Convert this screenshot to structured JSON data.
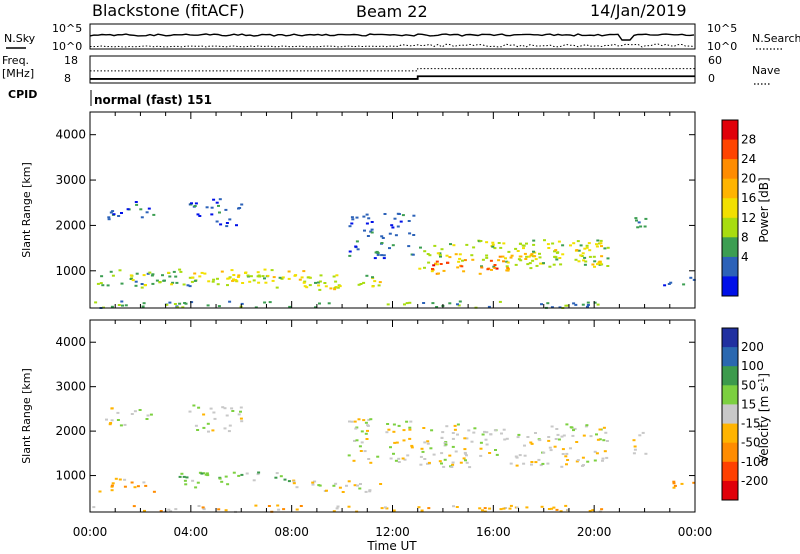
{
  "header": {
    "radar": "Blackstone (fitACF)",
    "beam": "Beam 22",
    "date": "14/Jan/2019"
  },
  "status_panels": {
    "nsky_label": "N.Sky",
    "nsearch_label": "N.Search",
    "freq_label": "Freq.",
    "freq_unit": "[MHz]",
    "nave_label": "Nave",
    "cpid_label": "CPID",
    "cpid_text": "normal (fast) 151",
    "noise_ticks": [
      "10^5",
      "10^0"
    ],
    "freq_ticks": [
      "18",
      "8"
    ],
    "nave_ticks": [
      "60",
      "0"
    ],
    "freq_series": {
      "before": 9.5,
      "after": 10.5,
      "change_hour": 13.0
    },
    "nave_series": {
      "before": 27,
      "after": 32,
      "change_hour": 13.0
    }
  },
  "x_axis": {
    "title": "Time UT",
    "ticks": [
      "00:00",
      "04:00",
      "08:00",
      "12:00",
      "16:00",
      "20:00",
      "00:00"
    ],
    "range_hours": [
      0,
      24
    ]
  },
  "chart_data": [
    {
      "type": "heatmap",
      "name": "power",
      "ylabel": "Slant Range [km]",
      "yticks": [
        1000,
        2000,
        3000,
        4000
      ],
      "ylim": [
        180,
        4500
      ],
      "colorbar": {
        "label": "Power [dB]",
        "ticks": [
          "28",
          "24",
          "20",
          "16",
          "12",
          "8",
          "4"
        ],
        "colors": [
          "#e0000a",
          "#ff4400",
          "#ff8c00",
          "#ffb400",
          "#f2e000",
          "#a8dc10",
          "#3c9e52",
          "#2c62b8",
          "#0010e8"
        ]
      },
      "regions": [
        {
          "t0": 0.5,
          "t1": 2.5,
          "r0": 2150,
          "r1": 2550,
          "level": 1
        },
        {
          "t0": 3.9,
          "t1": 6.0,
          "r0": 2000,
          "r1": 2600,
          "level": 1
        },
        {
          "t0": 0.0,
          "t1": 4.0,
          "r0": 650,
          "r1": 1000,
          "level": 2
        },
        {
          "t0": 1.0,
          "t1": 7.0,
          "r0": 700,
          "r1": 1050,
          "level": 3
        },
        {
          "t0": 3.5,
          "t1": 8.5,
          "r0": 750,
          "r1": 1050,
          "level": 4
        },
        {
          "t0": 7.0,
          "t1": 11.5,
          "r0": 650,
          "r1": 950,
          "level": 3
        },
        {
          "t0": 9.0,
          "t1": 11.5,
          "r0": 550,
          "r1": 800,
          "level": 4
        },
        {
          "t0": 0.0,
          "t1": 20.5,
          "r0": 200,
          "r1": 350,
          "level": 2
        },
        {
          "t0": 10.2,
          "t1": 12.8,
          "r0": 1300,
          "r1": 2300,
          "level": 1
        },
        {
          "t0": 13.0,
          "t1": 20.5,
          "r0": 1050,
          "r1": 1700,
          "level": 3
        },
        {
          "t0": 13.5,
          "t1": 17.5,
          "r0": 950,
          "r1": 1400,
          "level": 5
        },
        {
          "t0": 13.5,
          "t1": 16.5,
          "r0": 1050,
          "r1": 1250,
          "level": 7
        },
        {
          "t0": 17.0,
          "t1": 20.5,
          "r0": 1150,
          "r1": 1650,
          "level": 4
        },
        {
          "t0": 21.5,
          "t1": 22.0,
          "r0": 1500,
          "r1": 2200,
          "level": 2
        },
        {
          "t0": 22.5,
          "t1": 24.0,
          "r0": 700,
          "r1": 900,
          "level": 1
        }
      ]
    },
    {
      "type": "heatmap",
      "name": "velocity",
      "ylabel": "Slant Range [km]",
      "yticks": [
        1000,
        2000,
        3000,
        4000
      ],
      "ylim": [
        180,
        4500
      ],
      "colorbar": {
        "label": "Velocity [m s",
        "label_exp": "-1",
        "label_end": "]",
        "ticks": [
          "200",
          "100",
          "50",
          "15",
          "-15",
          "-50",
          "-100",
          "-200"
        ],
        "colors": [
          "#2030a0",
          "#2a68b0",
          "#3c9a4c",
          "#7cd040",
          "#c8c8c8",
          "#ffb400",
          "#ff8c00",
          "#ff4000",
          "#e0000a"
        ]
      },
      "regions": [
        {
          "t0": 0.5,
          "t1": 2.5,
          "r0": 2150,
          "r1": 2550,
          "level": 4
        },
        {
          "t0": 3.9,
          "t1": 6.0,
          "r0": 2000,
          "r1": 2600,
          "level": 4
        },
        {
          "t0": 0.0,
          "t1": 2.5,
          "r0": 650,
          "r1": 950,
          "level": 3
        },
        {
          "t0": 3.5,
          "t1": 8.0,
          "r0": 750,
          "r1": 1100,
          "level": 5
        },
        {
          "t0": 8.0,
          "t1": 11.5,
          "r0": 650,
          "r1": 1000,
          "level": 4
        },
        {
          "t0": 0.0,
          "t1": 20.5,
          "r0": 200,
          "r1": 350,
          "level": 3
        },
        {
          "t0": 10.2,
          "t1": 12.8,
          "r0": 1300,
          "r1": 2300,
          "level": 4
        },
        {
          "t0": 13.0,
          "t1": 20.5,
          "r0": 1200,
          "r1": 2200,
          "level": 4
        },
        {
          "t0": 21.5,
          "t1": 22.0,
          "r0": 1500,
          "r1": 2200,
          "level": 4
        },
        {
          "t0": 22.7,
          "t1": 24.0,
          "r0": 700,
          "r1": 900,
          "level": 3
        }
      ]
    }
  ]
}
